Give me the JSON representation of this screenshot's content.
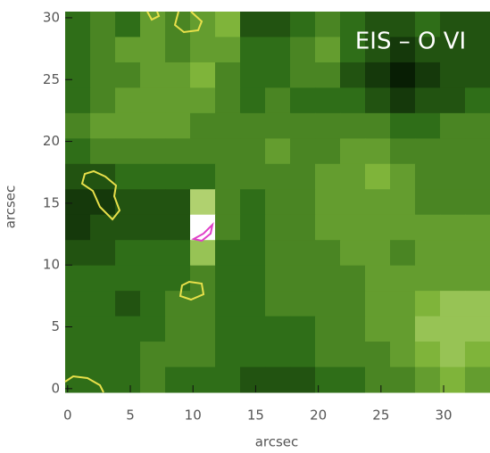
{
  "chart_data": {
    "type": "heatmap",
    "annotation": "EIS – O VI",
    "xlabel": "arcsec",
    "ylabel": "arcsec",
    "xlim": [
      -0.2,
      33.7
    ],
    "ylim": [
      -0.3,
      30.5
    ],
    "xticks": [
      0,
      5,
      10,
      15,
      20,
      25,
      30
    ],
    "yticks": [
      0,
      5,
      10,
      15,
      20,
      25,
      30
    ],
    "values": [
      [
        4,
        5,
        4,
        6,
        5,
        6,
        7,
        3,
        3,
        4,
        5,
        4,
        3,
        3,
        4,
        3,
        3
      ],
      [
        4,
        5,
        6,
        6,
        5,
        6,
        6,
        4,
        4,
        5,
        6,
        4,
        3,
        2,
        3,
        3,
        3
      ],
      [
        4,
        5,
        5,
        6,
        6,
        7,
        5,
        4,
        4,
        5,
        5,
        3,
        2,
        1,
        2,
        3,
        3
      ],
      [
        4,
        5,
        6,
        6,
        6,
        6,
        5,
        4,
        5,
        4,
        4,
        4,
        3,
        2,
        3,
        3,
        4
      ],
      [
        5,
        6,
        6,
        6,
        6,
        5,
        5,
        5,
        5,
        5,
        5,
        5,
        5,
        4,
        4,
        5,
        5
      ],
      [
        4,
        5,
        5,
        5,
        5,
        5,
        5,
        5,
        6,
        5,
        5,
        6,
        6,
        5,
        5,
        5,
        5
      ],
      [
        3,
        3,
        4,
        4,
        4,
        4,
        5,
        5,
        5,
        5,
        6,
        6,
        7,
        6,
        5,
        5,
        5
      ],
      [
        2,
        2,
        3,
        3,
        3,
        9,
        5,
        4,
        5,
        5,
        6,
        6,
        6,
        6,
        5,
        5,
        5
      ],
      [
        2,
        3,
        3,
        3,
        3,
        13,
        5,
        4,
        5,
        5,
        6,
        6,
        6,
        6,
        6,
        6,
        6
      ],
      [
        3,
        3,
        4,
        4,
        4,
        8,
        4,
        4,
        5,
        5,
        5,
        6,
        6,
        5,
        6,
        6,
        6
      ],
      [
        4,
        4,
        4,
        4,
        4,
        5,
        4,
        4,
        5,
        5,
        5,
        5,
        6,
        6,
        6,
        6,
        6
      ],
      [
        4,
        4,
        3,
        4,
        5,
        5,
        4,
        4,
        5,
        5,
        5,
        5,
        6,
        6,
        7,
        8,
        8
      ],
      [
        4,
        4,
        4,
        4,
        5,
        5,
        4,
        4,
        4,
        4,
        5,
        5,
        6,
        6,
        8,
        8,
        8
      ],
      [
        4,
        4,
        4,
        5,
        5,
        5,
        4,
        4,
        4,
        4,
        5,
        5,
        5,
        6,
        7,
        8,
        7
      ],
      [
        4,
        4,
        4,
        5,
        4,
        4,
        4,
        3,
        3,
        3,
        4,
        4,
        5,
        5,
        6,
        7,
        6
      ]
    ]
  }
}
